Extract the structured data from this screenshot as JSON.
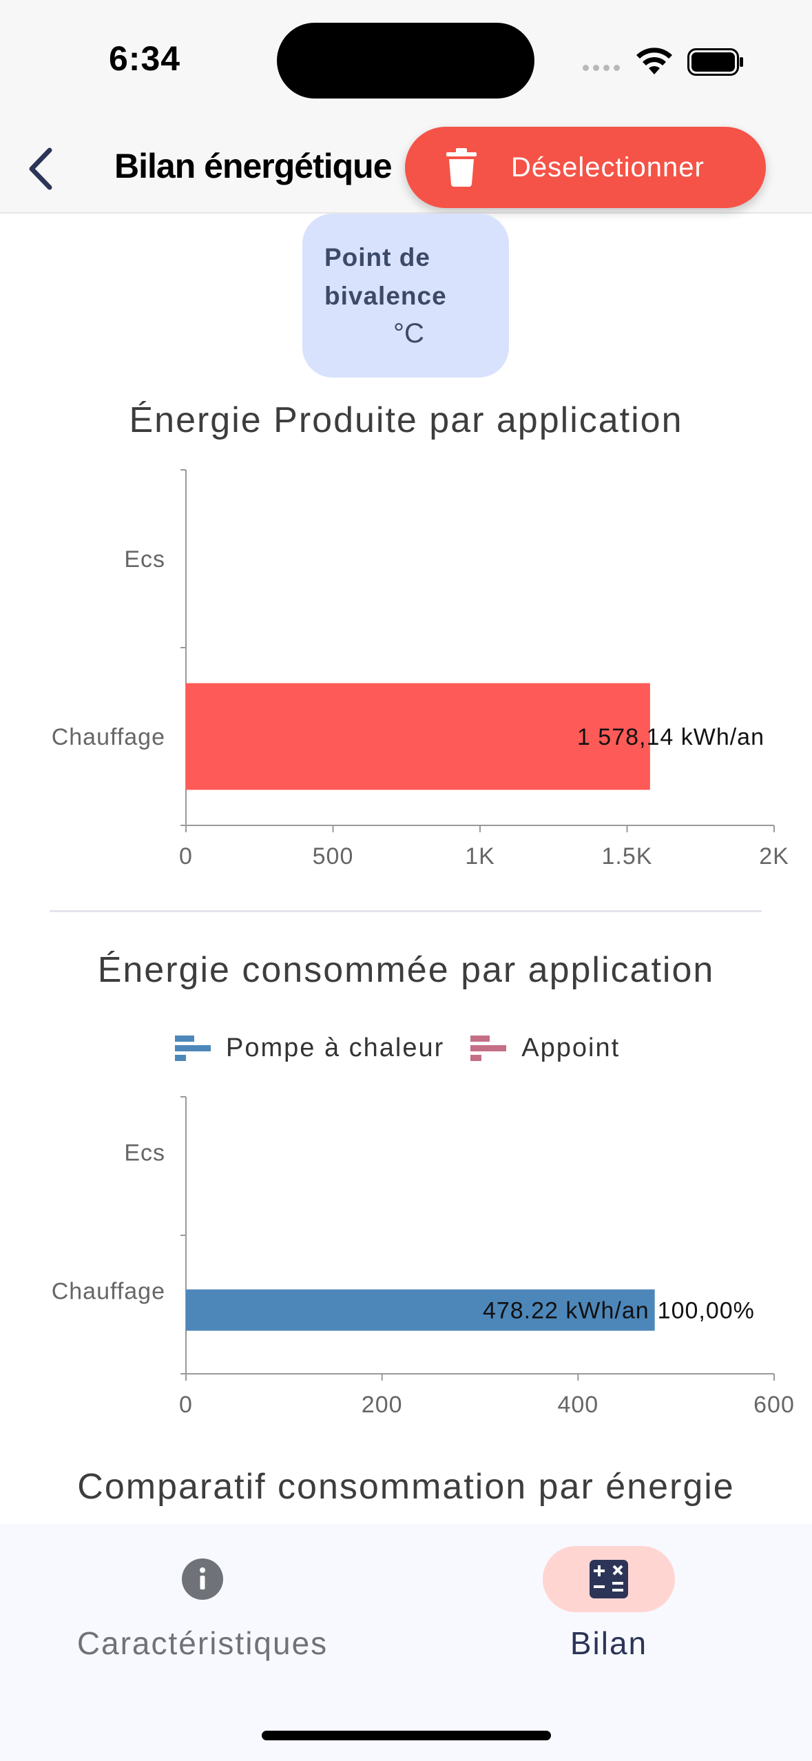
{
  "status_bar": {
    "time": "6:34"
  },
  "header": {
    "title": "Bilan énergétique",
    "deselect_label": "Déselectionner"
  },
  "bivalence": {
    "label": "Point de bivalence",
    "unit": "°C"
  },
  "charts": {
    "produced_title": "Énergie Produite par application",
    "consumed_title": "Énergie consommée par application",
    "comparative_title": "Comparatif consommation par énergie"
  },
  "chart_data": [
    {
      "type": "bar",
      "orientation": "horizontal",
      "title": "Énergie Produite par application",
      "categories": [
        "Ecs",
        "Chauffage"
      ],
      "values": [
        0,
        1578.14
      ],
      "data_labels": [
        "",
        "1 578,14 kWh/an"
      ],
      "xlim": [
        0,
        2000
      ],
      "x_ticks": [
        "0",
        "500",
        "1K",
        "1.5K",
        "2K"
      ],
      "color": "#fe5a57"
    },
    {
      "type": "bar",
      "orientation": "horizontal",
      "stacked": true,
      "title": "Énergie consommée par application",
      "categories": [
        "Ecs",
        "Chauffage"
      ],
      "series": [
        {
          "name": "Pompe à chaleur",
          "values": [
            0,
            478.22
          ],
          "color": "#4d87b9"
        },
        {
          "name": "Appoint",
          "values": [
            0,
            0
          ],
          "color": "#c46f86"
        }
      ],
      "data_labels": [
        "",
        "478.22 kWh/an"
      ],
      "percent_labels": [
        "",
        "100,00%"
      ],
      "xlim": [
        0,
        600
      ],
      "x_ticks": [
        "0",
        "200",
        "400",
        "600"
      ],
      "legend": "top"
    }
  ],
  "bottom_nav": {
    "items": [
      {
        "label": "Caractéristiques",
        "icon": "info-icon",
        "active": false
      },
      {
        "label": "Bilan",
        "icon": "calculator-icon",
        "active": true
      }
    ]
  }
}
